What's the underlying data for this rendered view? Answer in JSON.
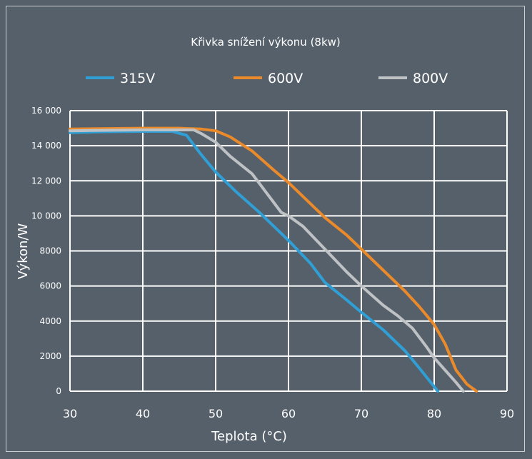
{
  "chart_data": {
    "type": "line",
    "title": "Křivka snížení výkonu (8kw)",
    "xlabel": "Teplota (°C)",
    "ylabel": "Výkon/W",
    "xlim": [
      30,
      90
    ],
    "ylim": [
      0,
      16000
    ],
    "x_ticks": [
      30,
      40,
      50,
      60,
      70,
      80,
      90
    ],
    "x_tick_labels": [
      "30",
      "40",
      "50",
      "60",
      "70",
      "80",
      "90"
    ],
    "y_ticks": [
      0,
      2000,
      4000,
      6000,
      8000,
      10000,
      12000,
      14000,
      16000
    ],
    "y_tick_labels": [
      "0",
      "2000",
      "4000",
      "6000",
      "8000",
      "10 000",
      "12 000",
      "14 000",
      "16 000"
    ],
    "grid": true,
    "legend_position": "top",
    "series": [
      {
        "name": "315V",
        "color": "#2f9fd6",
        "points": [
          [
            30,
            14750
          ],
          [
            35,
            14800
          ],
          [
            40,
            14820
          ],
          [
            44,
            14820
          ],
          [
            46,
            14600
          ],
          [
            48,
            13500
          ],
          [
            50,
            12500
          ],
          [
            53,
            11300
          ],
          [
            56,
            10200
          ],
          [
            60,
            8600
          ],
          [
            63,
            7300
          ],
          [
            65,
            6200
          ],
          [
            68,
            5200
          ],
          [
            70,
            4500
          ],
          [
            73,
            3500
          ],
          [
            76,
            2300
          ],
          [
            78,
            1300
          ],
          [
            80.5,
            0
          ]
        ]
      },
      {
        "name": "600V",
        "color": "#ea8a2a",
        "points": [
          [
            30,
            14950
          ],
          [
            35,
            14980
          ],
          [
            40,
            15000
          ],
          [
            45,
            15000
          ],
          [
            48,
            14950
          ],
          [
            50,
            14850
          ],
          [
            52,
            14500
          ],
          [
            55,
            13700
          ],
          [
            58,
            12600
          ],
          [
            60,
            11900
          ],
          [
            63,
            10700
          ],
          [
            65,
            9900
          ],
          [
            68,
            8900
          ],
          [
            70,
            8100
          ],
          [
            73,
            6900
          ],
          [
            76,
            5700
          ],
          [
            78,
            4800
          ],
          [
            80,
            3800
          ],
          [
            81.5,
            2700
          ],
          [
            83,
            1200
          ],
          [
            84.5,
            400
          ],
          [
            85.8,
            0
          ]
        ]
      },
      {
        "name": "800V",
        "color": "#bfc2c5",
        "points": [
          [
            30,
            14850
          ],
          [
            35,
            14880
          ],
          [
            40,
            14900
          ],
          [
            45,
            14900
          ],
          [
            47,
            14900
          ],
          [
            48,
            14700
          ],
          [
            50,
            14200
          ],
          [
            52,
            13400
          ],
          [
            55,
            12400
          ],
          [
            57,
            11300
          ],
          [
            59,
            10200
          ],
          [
            60,
            10000
          ],
          [
            62,
            9400
          ],
          [
            65,
            8100
          ],
          [
            68,
            6800
          ],
          [
            70,
            6000
          ],
          [
            73,
            4900
          ],
          [
            75,
            4300
          ],
          [
            77,
            3600
          ],
          [
            79,
            2500
          ],
          [
            80,
            1900
          ],
          [
            81.5,
            1200
          ],
          [
            83,
            500
          ],
          [
            84,
            0
          ]
        ]
      }
    ]
  }
}
